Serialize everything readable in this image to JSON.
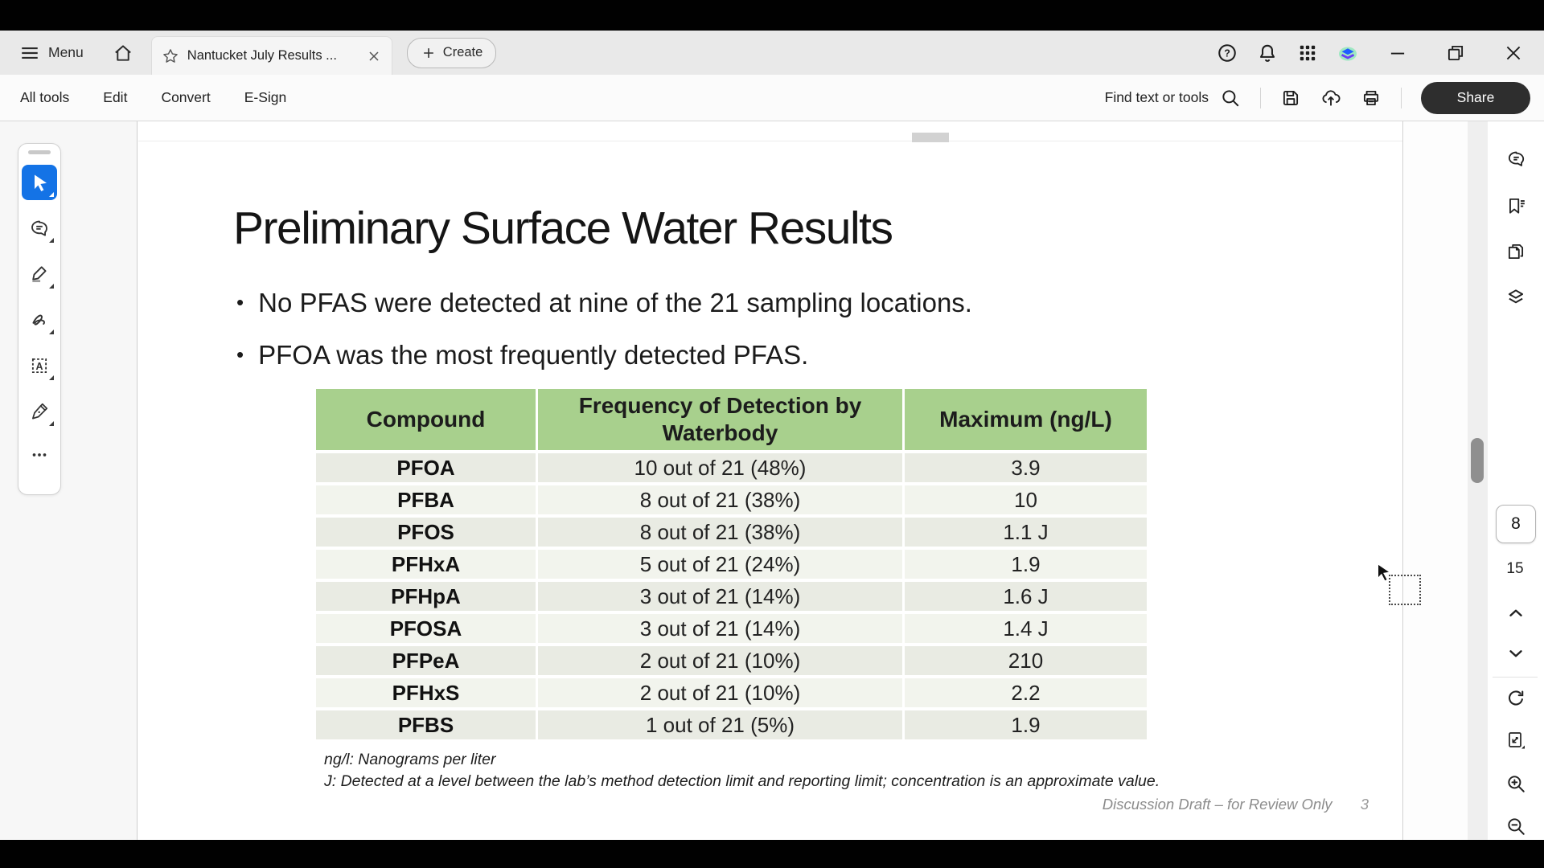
{
  "tabbar": {
    "menu_label": "Menu",
    "tab_title": "Nantucket July Results ...",
    "create_label": "Create"
  },
  "actionbar": {
    "nav_items": [
      "All tools",
      "Edit",
      "Convert",
      "E-Sign"
    ],
    "find_label": "Find text or tools",
    "share_label": "Share"
  },
  "left_toolbar_tools": [
    "select",
    "add-comment",
    "highlight",
    "draw",
    "select-text-box",
    "fill-and-sign",
    "more-tools"
  ],
  "right_panel_tools": [
    "comments",
    "bookmarks",
    "page-thumbnails",
    "layers"
  ],
  "page_nav": {
    "current_page": "8",
    "total_pages": "15"
  },
  "slide": {
    "title": "Preliminary Surface Water Results",
    "bullets": [
      "No PFAS were detected at nine of the 21 sampling locations.",
      "PFOA was the most frequently detected PFAS."
    ],
    "table": {
      "headers": [
        "Compound",
        "Frequency of Detection by Waterbody",
        "Maximum (ng/L)"
      ],
      "rows": [
        [
          "PFOA",
          "10 out of 21 (48%)",
          "3.9"
        ],
        [
          "PFBA",
          "8 out of 21 (38%)",
          "10"
        ],
        [
          "PFOS",
          "8 out of 21 (38%)",
          "1.1 J"
        ],
        [
          "PFHxA",
          "5 out of 21 (24%)",
          "1.9"
        ],
        [
          "PFHpA",
          "3 out of 21 (14%)",
          "1.6 J"
        ],
        [
          "PFOSA",
          "3 out of 21 (14%)",
          "1.4 J"
        ],
        [
          "PFPeA",
          "2 out of 21 (10%)",
          "210"
        ],
        [
          "PFHxS",
          "2 out of 21 (10%)",
          "2.2"
        ],
        [
          "PFBS",
          "1 out of 21 (5%)",
          "1.9"
        ]
      ]
    },
    "footnotes": [
      "ng/l: Nanograms per liter",
      "J: Detected at a level between the lab’s method detection limit and reporting limit; concentration is an approximate value."
    ],
    "footer_note": "Discussion Draft – for Review Only",
    "slide_number": "3"
  },
  "colors": {
    "accent_blue": "#1473e6",
    "table_header_green": "#a8d08d",
    "share_button_dark": "#2e2e2e"
  }
}
